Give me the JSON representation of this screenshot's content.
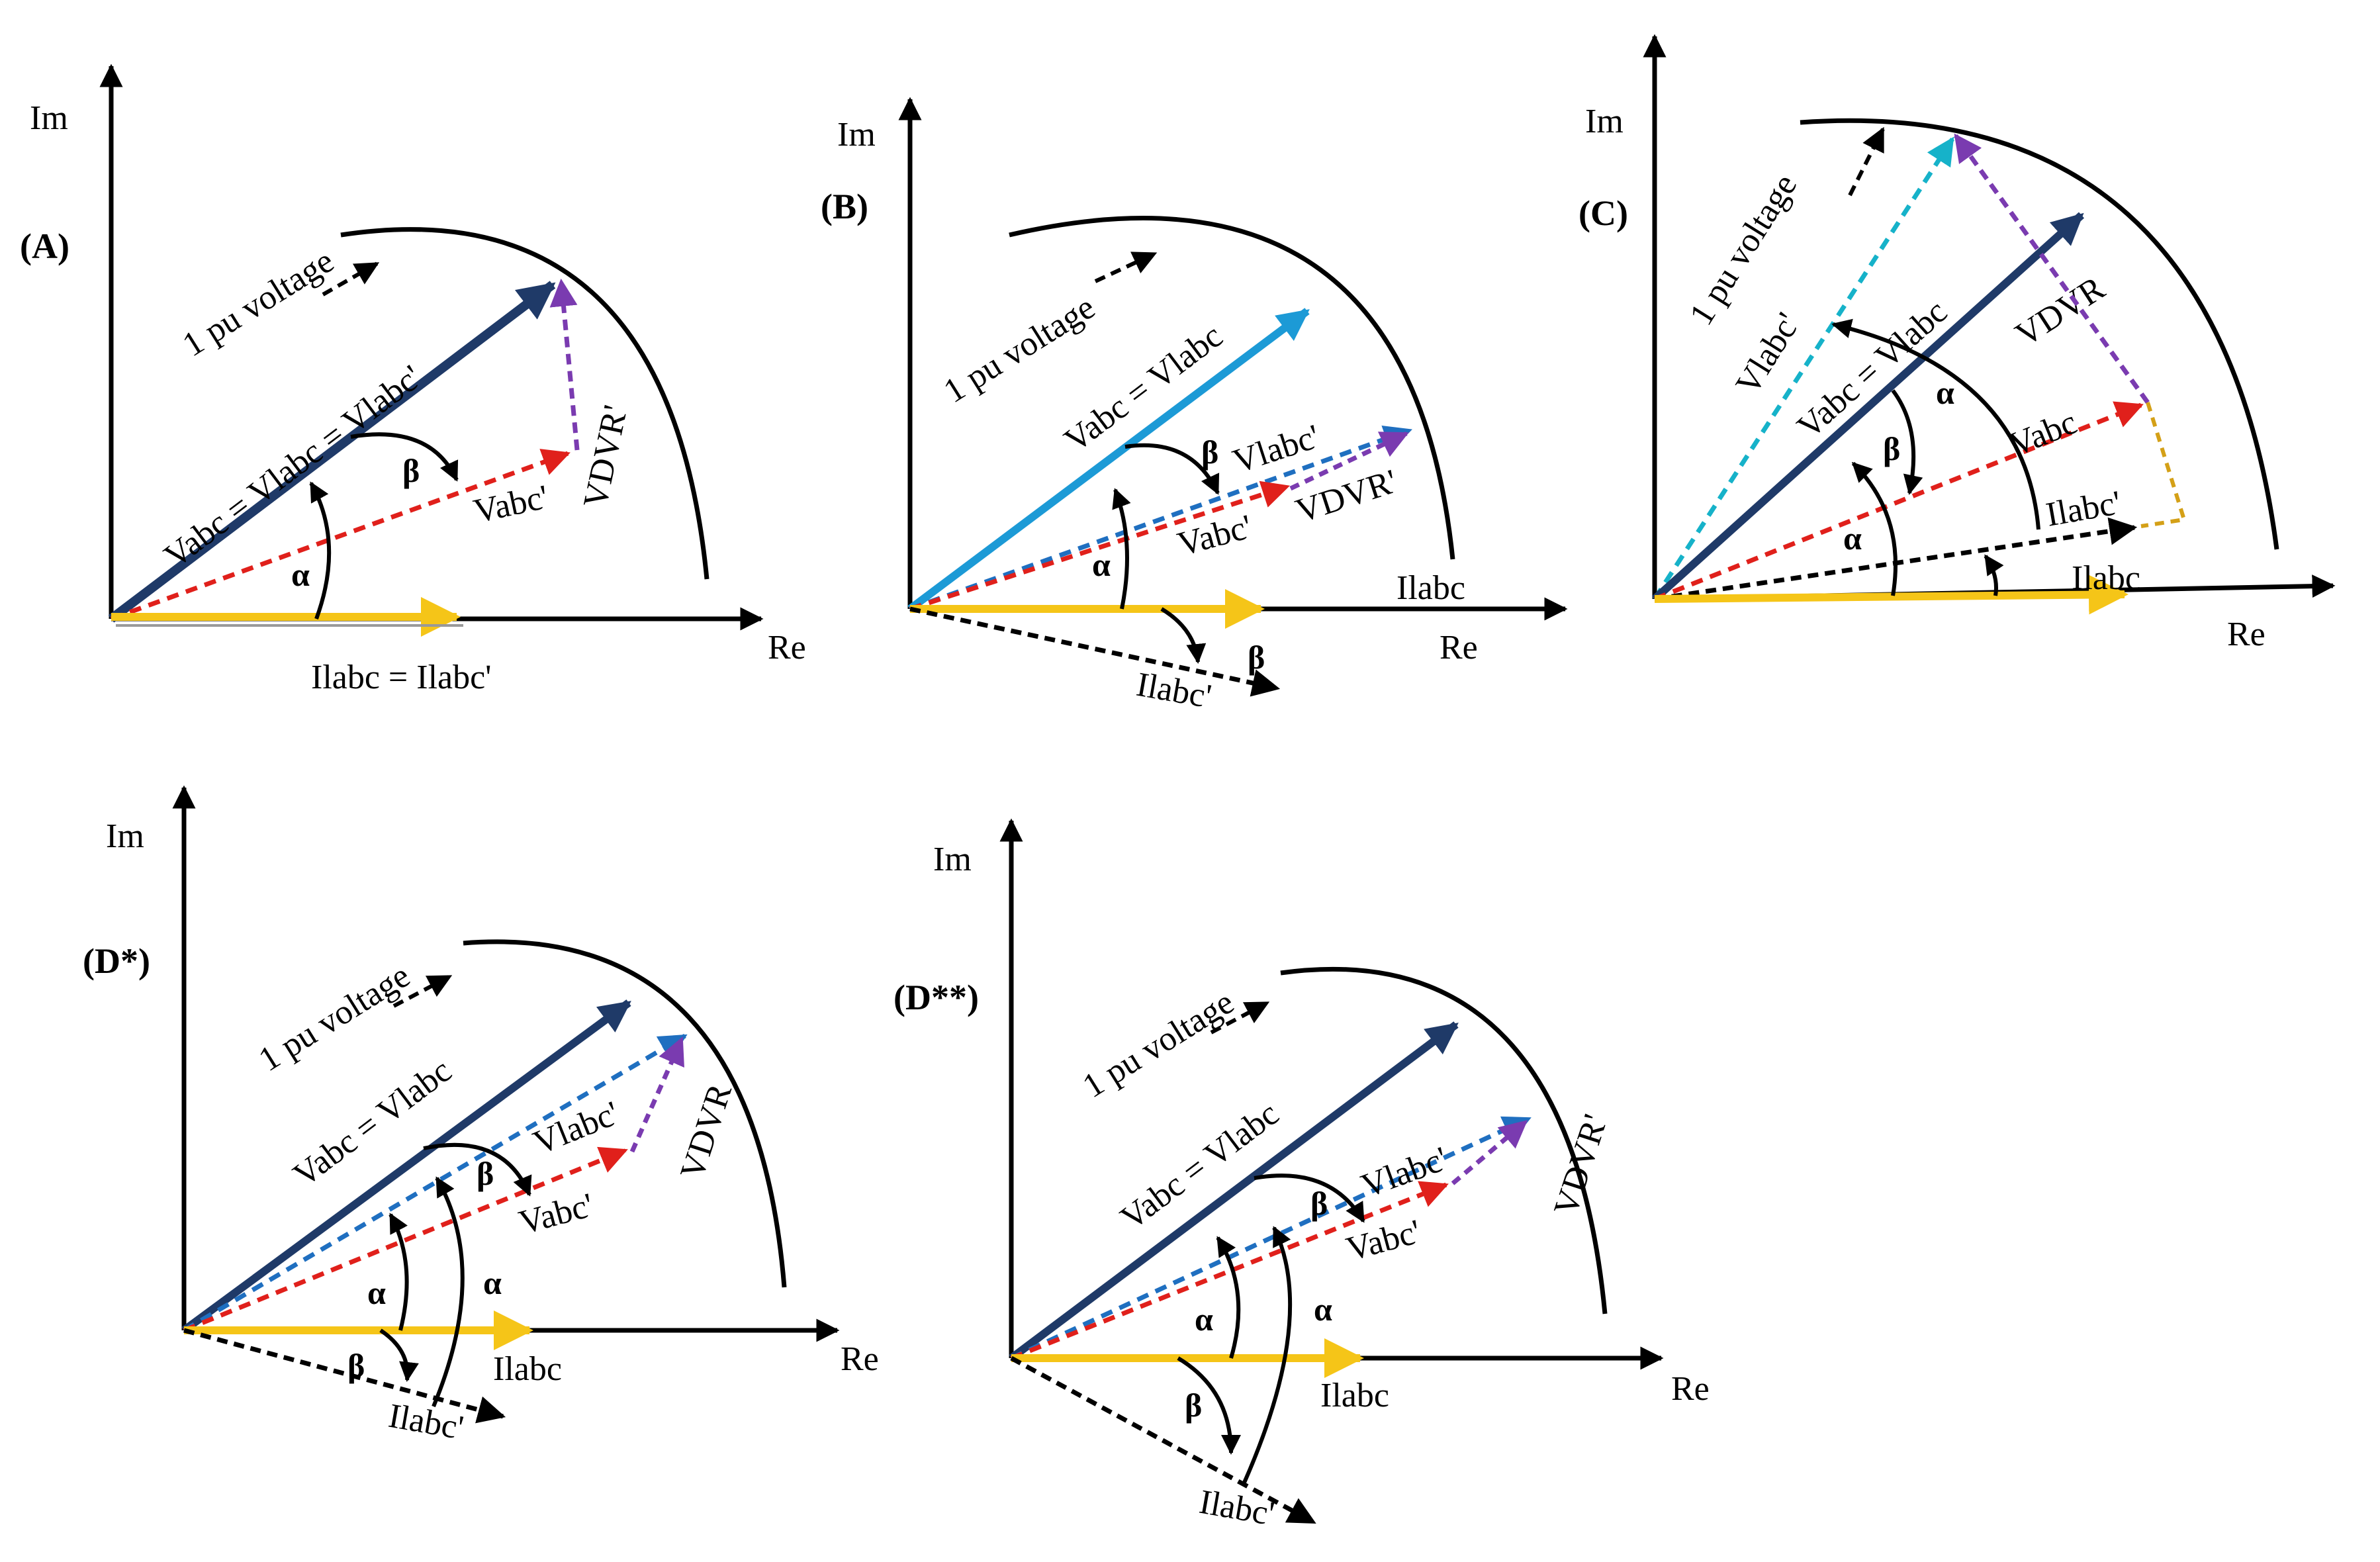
{
  "panels": {
    "A": {
      "tag": "(A)",
      "im": "Im",
      "re": "Re",
      "circle": "1 pu voltage",
      "v_main": "Vabc = Vlabc = Vlabc'",
      "v_red": "Vabc'",
      "vdvr": "VDVR'",
      "current": "Ilabc = Ilabc'",
      "alpha": "α",
      "beta": "β"
    },
    "B": {
      "tag": "(B)",
      "im": "Im",
      "re": "Re",
      "circle": "1 pu voltage",
      "v_main": "Vabc = Vlabc",
      "v_blue": "Vlabc'",
      "v_red": "Vabc'",
      "vdvr": "VDVR'",
      "current": "Ilabc",
      "current2": "Ilabc'",
      "alpha": "α",
      "beta": "β",
      "beta2": "β"
    },
    "C": {
      "tag": "(C)",
      "im": "Im",
      "re": "Re",
      "circle": "1 pu voltage",
      "v_cyan": "Vlabc'",
      "v_main": "Vabc = Vlabc",
      "vdvr": "VDVR",
      "v_red": "Vabc",
      "current2": "Ilabc'",
      "current": "Ilabc",
      "alpha": "α",
      "alpha2": "α",
      "beta": "β"
    },
    "Dstar": {
      "tag": "(D*)",
      "im": "Im",
      "re": "Re",
      "circle": "1 pu voltage",
      "v_main": "Vabc = Vlabc",
      "v_blue": "Vlabc'",
      "v_red": "Vabc'",
      "vdvr": "VDVR",
      "current": "Ilabc",
      "current2": "Ilabc'",
      "alpha": "α",
      "alpha2": "α",
      "beta": "β",
      "beta2": "β"
    },
    "Dstar2": {
      "tag": "(D**)",
      "im": "Im",
      "re": "Re",
      "circle": "1 pu voltage",
      "v_main": "Vabc = Vlabc",
      "v_blue": "Vlabc'",
      "v_red": "Vabc'",
      "vdvr": "VDVR'",
      "current": "Ilabc",
      "current2": "Ilabc'",
      "alpha": "α",
      "alpha2": "α",
      "beta": "β",
      "beta2": "β"
    }
  },
  "colors": {
    "axis": "#000000",
    "navy": "#1f3a68",
    "sky": "#1c9ad6",
    "blue_dash": "#1f6fc0",
    "red_dash": "#e0201b",
    "purple": "#7a3bb0",
    "cyan": "#16b2c9",
    "yellow": "#f5c518",
    "orange": "#d4a017"
  }
}
